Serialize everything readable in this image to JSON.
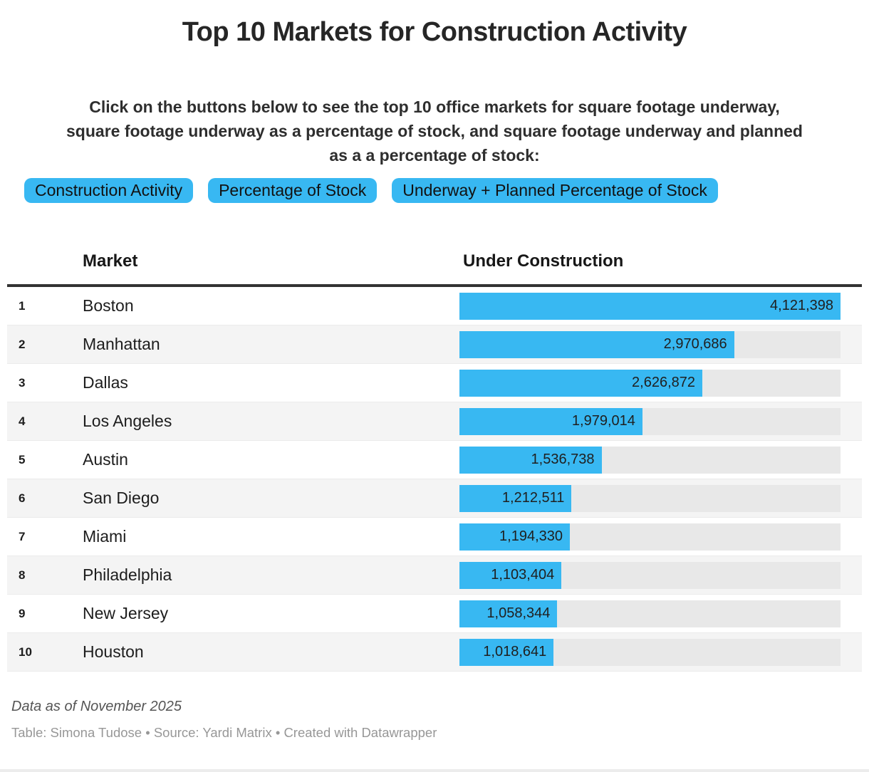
{
  "header": {
    "title": "Top 10 Markets for Construction Activity",
    "intro_lines": [
      "Click on the buttons below to see the top 10 office markets for square footage underway,",
      "square footage underway as a percentage of stock, and square footage underway and planned",
      "as a a percentage of stock:"
    ]
  },
  "buttons": [
    {
      "label": "Construction Activity"
    },
    {
      "label": "Percentage of Stock"
    },
    {
      "label": "Underway + Planned Percentage of Stock"
    }
  ],
  "table": {
    "columns": {
      "market": "Market",
      "value": "Under Construction"
    },
    "max_value": 4121398,
    "rows": [
      {
        "rank": "1",
        "market": "Boston",
        "value": 4121398,
        "value_label": "4,121,398"
      },
      {
        "rank": "2",
        "market": "Manhattan",
        "value": 2970686,
        "value_label": "2,970,686"
      },
      {
        "rank": "3",
        "market": "Dallas",
        "value": 2626872,
        "value_label": "2,626,872"
      },
      {
        "rank": "4",
        "market": "Los Angeles",
        "value": 1979014,
        "value_label": "1,979,014"
      },
      {
        "rank": "5",
        "market": "Austin",
        "value": 1536738,
        "value_label": "1,536,738"
      },
      {
        "rank": "6",
        "market": "San Diego",
        "value": 1212511,
        "value_label": "1,212,511"
      },
      {
        "rank": "7",
        "market": "Miami",
        "value": 1194330,
        "value_label": "1,194,330"
      },
      {
        "rank": "8",
        "market": "Philadelphia",
        "value": 1103404,
        "value_label": "1,103,404"
      },
      {
        "rank": "9",
        "market": "New Jersey",
        "value": 1058344,
        "value_label": "1,058,344"
      },
      {
        "rank": "10",
        "market": "Houston",
        "value": 1018641,
        "value_label": "1,018,641"
      }
    ]
  },
  "footer": {
    "note": "Data as of November 2025",
    "attribution": "Table: Simona Tudose • Source: Yardi Matrix • Created with Datawrapper"
  },
  "colors": {
    "accent_blue": "#38b8f2",
    "bar_track_grey": "#e8e8e8",
    "row_stripe_grey": "#f4f4f4",
    "header_rule_dark": "#333333"
  },
  "chart_data": {
    "type": "bar",
    "orientation": "horizontal",
    "title": "Top 10 Markets for Construction Activity",
    "series_label": "Under Construction",
    "categories": [
      "Boston",
      "Manhattan",
      "Dallas",
      "Los Angeles",
      "Austin",
      "San Diego",
      "Miami",
      "Philadelphia",
      "New Jersey",
      "Houston"
    ],
    "values": [
      4121398,
      2970686,
      2626872,
      1979014,
      1536738,
      1212511,
      1194330,
      1103404,
      1058344,
      1018641
    ],
    "value_labels": [
      "4,121,398",
      "2,970,686",
      "2,626,872",
      "1,979,014",
      "1,536,738",
      "1,212,511",
      "1,194,330",
      "1,103,404",
      "1,058,344",
      "1,018,641"
    ],
    "xlim": [
      0,
      4121398
    ],
    "grid": false,
    "legend_position": "none",
    "value_label_position": "inside-bar-right"
  }
}
